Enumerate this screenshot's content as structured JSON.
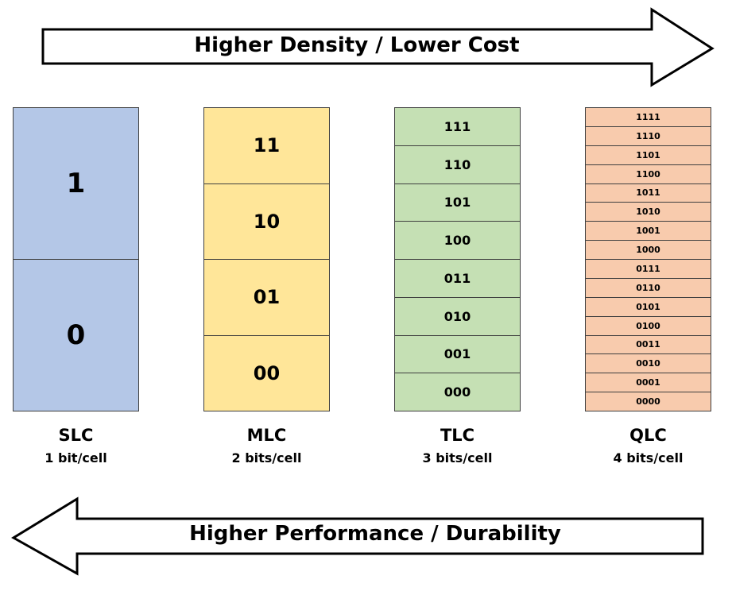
{
  "top_arrow": {
    "label": "Higher Density / Lower Cost"
  },
  "bottom_arrow": {
    "label": "Higher Performance / Durability"
  },
  "columns": [
    {
      "name": "SLC",
      "bits": "1 bit/cell",
      "color": "#b4c7e7",
      "cells": [
        "1",
        "0"
      ]
    },
    {
      "name": "MLC",
      "bits": "2 bits/cell",
      "color": "#ffe699",
      "cells": [
        "11",
        "10",
        "01",
        "00"
      ]
    },
    {
      "name": "TLC",
      "bits": "3 bits/cell",
      "color": "#c5e0b4",
      "cells": [
        "111",
        "110",
        "101",
        "100",
        "011",
        "010",
        "001",
        "000"
      ]
    },
    {
      "name": "QLC",
      "bits": "4 bits/cell",
      "color": "#f8cbad",
      "cells": [
        "1111",
        "1110",
        "1101",
        "1100",
        "1011",
        "1010",
        "1001",
        "1000",
        "0111",
        "0110",
        "0101",
        "0100",
        "0011",
        "0010",
        "0001",
        "0000"
      ]
    }
  ]
}
